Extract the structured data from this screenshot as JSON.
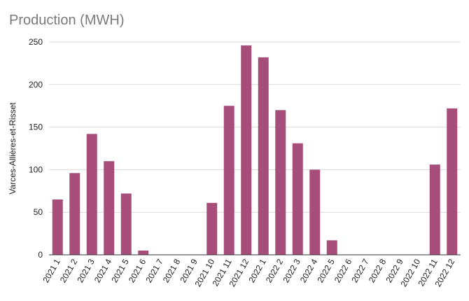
{
  "chart_data": {
    "type": "bar",
    "title": "Production (MWH)",
    "xlabel": "",
    "ylabel": "Varces-Allières-et-Risset",
    "ylim": [
      0,
      250
    ],
    "yticks": [
      0,
      50,
      100,
      150,
      200,
      250
    ],
    "grid": true,
    "bar_color": "#a64d79",
    "categories": [
      "2021 1",
      "2021 2",
      "2021 3",
      "2021 4",
      "2021 5",
      "2021 6",
      "2021 7",
      "2021 8",
      "2021 9",
      "2021 10",
      "2021 11",
      "2021 12",
      "2022 1",
      "2022 2",
      "2022 3",
      "2022 4",
      "2022 5",
      "2022 6",
      "2022 7",
      "2022 8",
      "2022 9",
      "2022 10",
      "2022 11",
      "2022 12"
    ],
    "values": [
      65,
      96,
      142,
      110,
      72,
      5,
      0,
      0,
      0,
      61,
      175,
      246,
      232,
      170,
      131,
      100,
      17,
      0,
      0,
      0,
      0,
      0,
      106,
      172
    ]
  }
}
